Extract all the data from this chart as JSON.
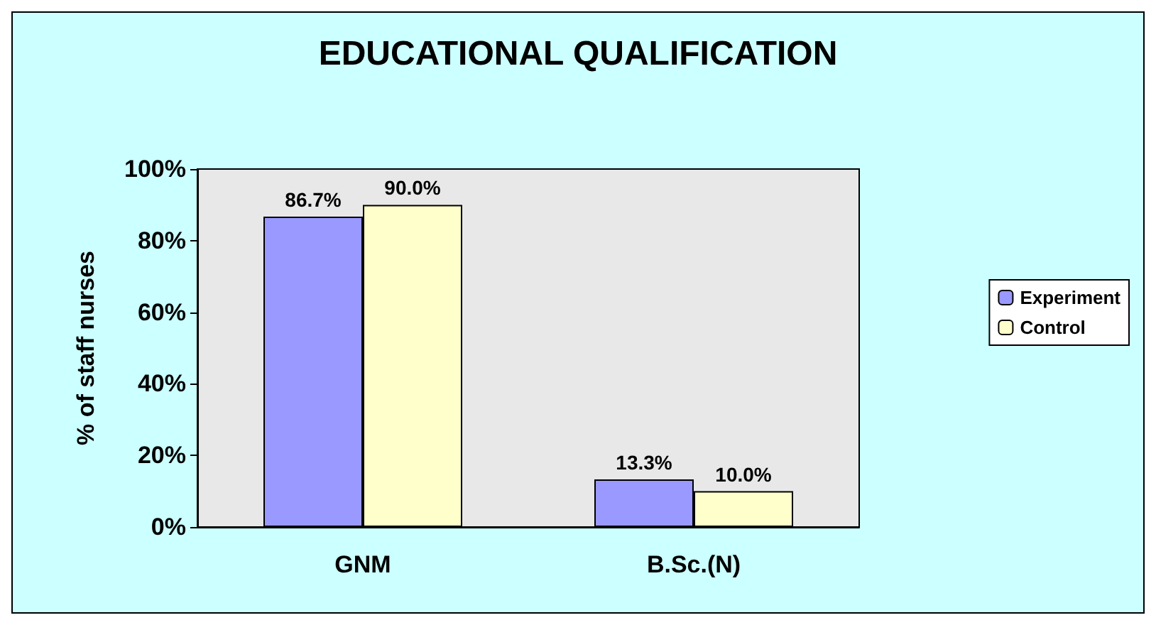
{
  "chart_data": {
    "type": "bar",
    "title": "EDUCATIONAL QUALIFICATION",
    "ylabel": "% of staff nurses",
    "categories": [
      "GNM",
      "B.Sc.(N)"
    ],
    "series": [
      {
        "name": "Experiment",
        "color": "#9999ff",
        "values": [
          86.7,
          13.3
        ],
        "value_labels": [
          "86.7%",
          "13.3%"
        ]
      },
      {
        "name": "Control",
        "color": "#ffffcc",
        "values": [
          90.0,
          10.0
        ],
        "value_labels": [
          "90.0%",
          "10.0%"
        ]
      }
    ],
    "ylim": [
      0,
      100
    ],
    "yticks": [
      {
        "value": 0,
        "label": "0%"
      },
      {
        "value": 20,
        "label": "20%"
      },
      {
        "value": 40,
        "label": "40%"
      },
      {
        "value": 60,
        "label": "60%"
      },
      {
        "value": 80,
        "label": "80%"
      },
      {
        "value": 100,
        "label": "100%"
      }
    ],
    "grid": false,
    "legend": "right"
  }
}
